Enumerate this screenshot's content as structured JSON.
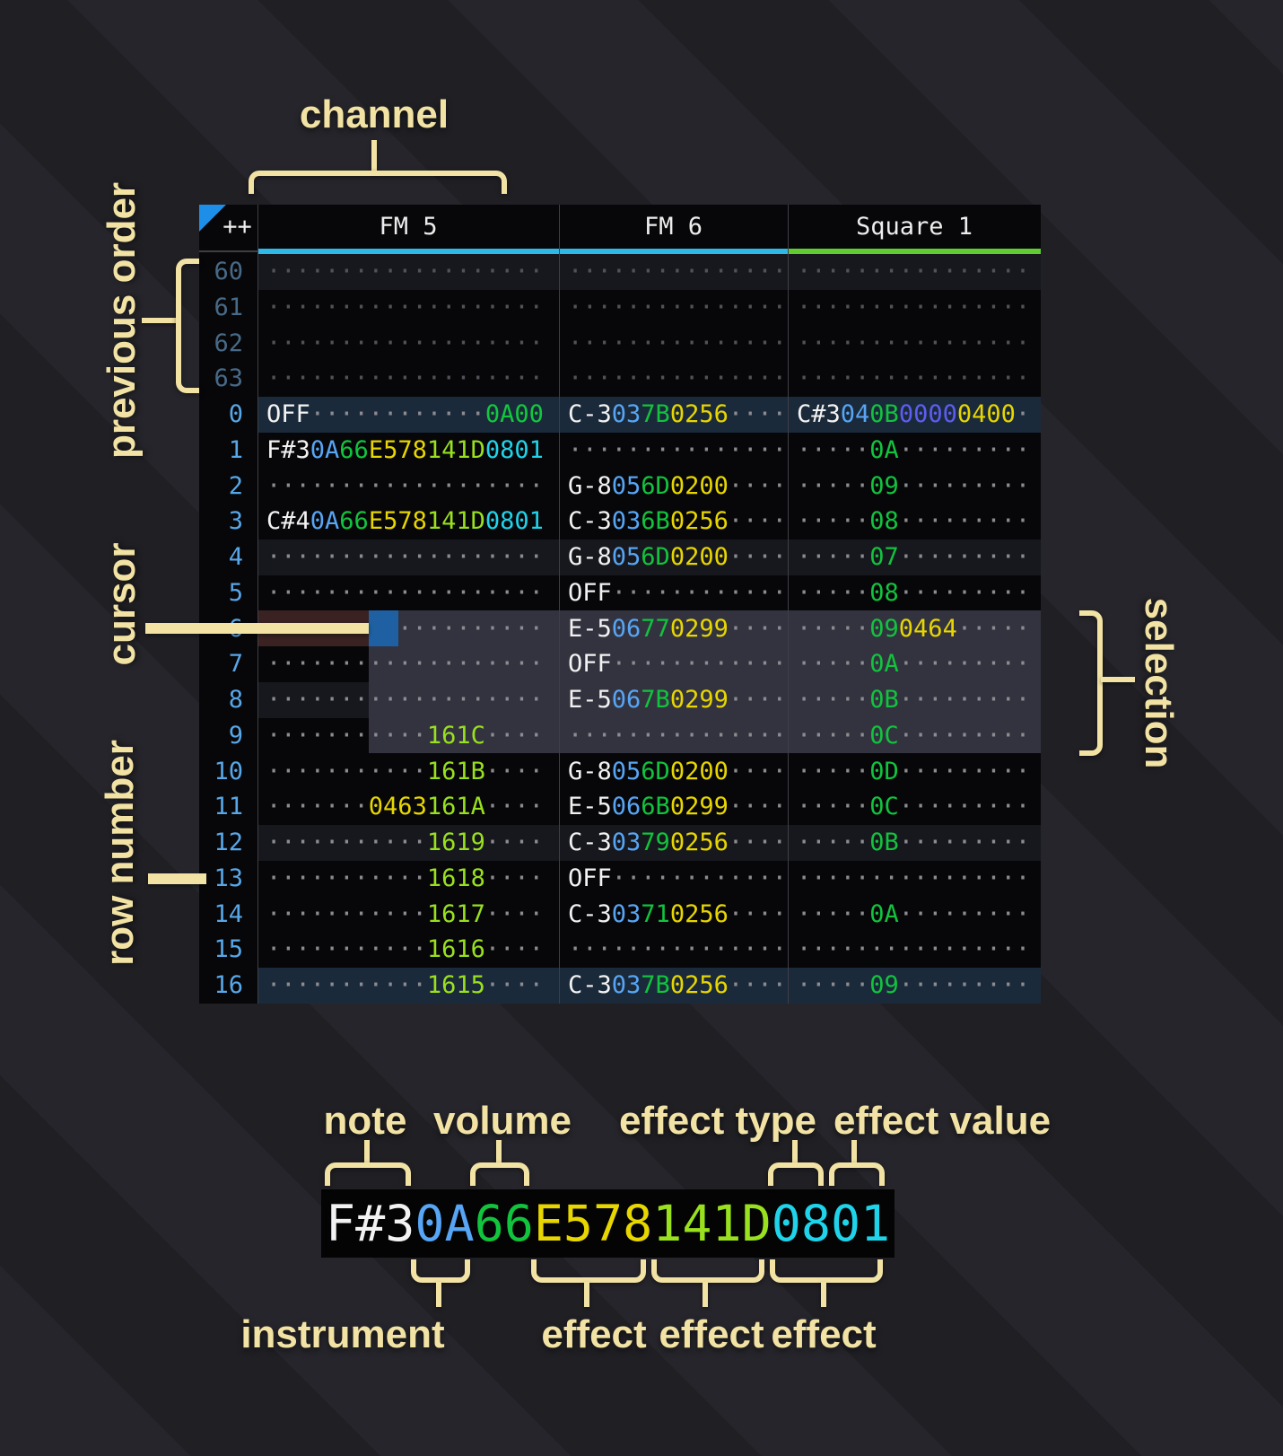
{
  "annotations": {
    "channel": "channel",
    "previous_order": "previous order",
    "cursor": "cursor",
    "row_number": "row number",
    "selection": "selection"
  },
  "header": {
    "order_cell": "++",
    "channels": [
      {
        "name": "FM 5",
        "accent": "#2fb9e9"
      },
      {
        "name": "FM 6",
        "accent": "#2fb9e9"
      },
      {
        "name": "Square 1",
        "accent": "#5fcd31"
      }
    ]
  },
  "colors": {
    "note": "#f2f2f2",
    "instrument": "#57a5f4",
    "volume": "#12c33e",
    "fx_yellow": "#e7d600",
    "fx_lime": "#99e01e",
    "fx_cyan": "#1fd4ea",
    "fx_indigo": "#5d5df2",
    "fx_green": "#12c83e",
    "dots": "#8b8b90",
    "dots_dim": "#515158",
    "row_number": "#58a7e8",
    "prev_row_number": "#476a88",
    "cream": "#f2e3a4",
    "cursor": "#1f60a2",
    "cursor_row": "#3a2222",
    "selection": "#333340",
    "row_major_bg": "#1b2a3a",
    "row_minor_bg": "#17181d"
  },
  "pattern": {
    "rows": [
      {
        "num": "60",
        "prev": true,
        "bg": "minor",
        "cells": [
          [
            [
              "···················",
              "d"
            ]
          ],
          [
            [
              "···············",
              "d"
            ]
          ],
          [
            [
              "················",
              "d"
            ]
          ]
        ]
      },
      {
        "num": "61",
        "prev": true,
        "bg": "none",
        "cells": [
          [
            [
              "···················",
              "d"
            ]
          ],
          [
            [
              "···············",
              "d"
            ]
          ],
          [
            [
              "················",
              "d"
            ]
          ]
        ]
      },
      {
        "num": "62",
        "prev": true,
        "bg": "none",
        "cells": [
          [
            [
              "···················",
              "d"
            ]
          ],
          [
            [
              "···············",
              "d"
            ]
          ],
          [
            [
              "················",
              "d"
            ]
          ]
        ]
      },
      {
        "num": "63",
        "prev": true,
        "bg": "none",
        "cells": [
          [
            [
              "···················",
              "d"
            ]
          ],
          [
            [
              "···············",
              "d"
            ]
          ],
          [
            [
              "················",
              "d"
            ]
          ]
        ]
      },
      {
        "num": "0",
        "prev": false,
        "bg": "major",
        "cells": [
          [
            [
              "OFF",
              "n"
            ],
            [
              "············",
              "d"
            ],
            [
              "0A00",
              "fg"
            ]
          ],
          [
            [
              "C-3",
              "n"
            ],
            [
              "03",
              "i"
            ],
            [
              "7B",
              "v"
            ],
            [
              "0256",
              "fy"
            ],
            [
              "····",
              "d"
            ]
          ],
          [
            [
              "C#3",
              "n"
            ],
            [
              "04",
              "i"
            ],
            [
              "0B",
              "v"
            ],
            [
              "0000",
              "fi"
            ],
            [
              "0400",
              "fy"
            ],
            [
              "·",
              "d"
            ]
          ]
        ]
      },
      {
        "num": "1",
        "prev": false,
        "bg": "none",
        "cells": [
          [
            [
              "F#3",
              "n"
            ],
            [
              "0A",
              "i"
            ],
            [
              "66",
              "v"
            ],
            [
              "E578",
              "fy"
            ],
            [
              "141D",
              "fl"
            ],
            [
              "0801",
              "fc"
            ]
          ],
          [
            [
              "···············",
              "d"
            ]
          ],
          [
            [
              "·····",
              "d"
            ],
            [
              "0A",
              "v"
            ],
            [
              "·········",
              "d"
            ]
          ]
        ]
      },
      {
        "num": "2",
        "prev": false,
        "bg": "none",
        "cells": [
          [
            [
              "···················",
              "d"
            ]
          ],
          [
            [
              "G-8",
              "n"
            ],
            [
              "05",
              "i"
            ],
            [
              "6D",
              "v"
            ],
            [
              "0200",
              "fy"
            ],
            [
              "····",
              "d"
            ]
          ],
          [
            [
              "·····",
              "d"
            ],
            [
              "09",
              "v"
            ],
            [
              "·········",
              "d"
            ]
          ]
        ]
      },
      {
        "num": "3",
        "prev": false,
        "bg": "none",
        "cells": [
          [
            [
              "C#4",
              "n"
            ],
            [
              "0A",
              "i"
            ],
            [
              "66",
              "v"
            ],
            [
              "E578",
              "fy"
            ],
            [
              "141D",
              "fl"
            ],
            [
              "0801",
              "fc"
            ]
          ],
          [
            [
              "C-3",
              "n"
            ],
            [
              "03",
              "i"
            ],
            [
              "6B",
              "v"
            ],
            [
              "0256",
              "fy"
            ],
            [
              "····",
              "d"
            ]
          ],
          [
            [
              "·····",
              "d"
            ],
            [
              "08",
              "v"
            ],
            [
              "·········",
              "d"
            ]
          ]
        ]
      },
      {
        "num": "4",
        "prev": false,
        "bg": "minor",
        "cells": [
          [
            [
              "···················",
              "d"
            ]
          ],
          [
            [
              "G-8",
              "n"
            ],
            [
              "05",
              "i"
            ],
            [
              "6D",
              "v"
            ],
            [
              "0200",
              "fy"
            ],
            [
              "····",
              "d"
            ]
          ],
          [
            [
              "·····",
              "d"
            ],
            [
              "07",
              "v"
            ],
            [
              "·········",
              "d"
            ]
          ]
        ]
      },
      {
        "num": "5",
        "prev": false,
        "bg": "none",
        "cells": [
          [
            [
              "···················",
              "d"
            ]
          ],
          [
            [
              "OFF",
              "n"
            ],
            [
              "············",
              "d"
            ]
          ],
          [
            [
              "·····",
              "d"
            ],
            [
              "08",
              "v"
            ],
            [
              "·········",
              "d"
            ]
          ]
        ]
      },
      {
        "num": "6",
        "prev": false,
        "bg": "none",
        "cells": [
          [
            [
              "···················",
              "d"
            ]
          ],
          [
            [
              "E-5",
              "n"
            ],
            [
              "06",
              "i"
            ],
            [
              "77",
              "v"
            ],
            [
              "0299",
              "fy"
            ],
            [
              "····",
              "d"
            ]
          ],
          [
            [
              "·····",
              "d"
            ],
            [
              "09",
              "v"
            ],
            [
              "0464",
              "fy"
            ],
            [
              "·····",
              "d"
            ]
          ]
        ]
      },
      {
        "num": "7",
        "prev": false,
        "bg": "none",
        "cells": [
          [
            [
              "···················",
              "d"
            ]
          ],
          [
            [
              "OFF",
              "n"
            ],
            [
              "············",
              "d"
            ]
          ],
          [
            [
              "·····",
              "d"
            ],
            [
              "0A",
              "v"
            ],
            [
              "·········",
              "d"
            ]
          ]
        ]
      },
      {
        "num": "8",
        "prev": false,
        "bg": "minor",
        "cells": [
          [
            [
              "···················",
              "d"
            ]
          ],
          [
            [
              "E-5",
              "n"
            ],
            [
              "06",
              "i"
            ],
            [
              "7B",
              "v"
            ],
            [
              "0299",
              "fy"
            ],
            [
              "····",
              "d"
            ]
          ],
          [
            [
              "·····",
              "d"
            ],
            [
              "0B",
              "v"
            ],
            [
              "·········",
              "d"
            ]
          ]
        ]
      },
      {
        "num": "9",
        "prev": false,
        "bg": "none",
        "cells": [
          [
            [
              "···········",
              "d"
            ],
            [
              "161C",
              "fl"
            ],
            [
              "····",
              "d"
            ]
          ],
          [
            [
              "···············",
              "d"
            ]
          ],
          [
            [
              "·····",
              "d"
            ],
            [
              "0C",
              "v"
            ],
            [
              "·········",
              "d"
            ]
          ]
        ]
      },
      {
        "num": "10",
        "prev": false,
        "bg": "none",
        "cells": [
          [
            [
              "···········",
              "d"
            ],
            [
              "161B",
              "fl"
            ],
            [
              "····",
              "d"
            ]
          ],
          [
            [
              "G-8",
              "n"
            ],
            [
              "05",
              "i"
            ],
            [
              "6D",
              "v"
            ],
            [
              "0200",
              "fy"
            ],
            [
              "····",
              "d"
            ]
          ],
          [
            [
              "·····",
              "d"
            ],
            [
              "0D",
              "v"
            ],
            [
              "·········",
              "d"
            ]
          ]
        ]
      },
      {
        "num": "11",
        "prev": false,
        "bg": "none",
        "cells": [
          [
            [
              "·······",
              "d"
            ],
            [
              "0463",
              "fy"
            ],
            [
              "161A",
              "fl"
            ],
            [
              "····",
              "d"
            ]
          ],
          [
            [
              "E-5",
              "n"
            ],
            [
              "06",
              "i"
            ],
            [
              "6B",
              "v"
            ],
            [
              "0299",
              "fy"
            ],
            [
              "····",
              "d"
            ]
          ],
          [
            [
              "·····",
              "d"
            ],
            [
              "0C",
              "v"
            ],
            [
              "·········",
              "d"
            ]
          ]
        ]
      },
      {
        "num": "12",
        "prev": false,
        "bg": "minor",
        "cells": [
          [
            [
              "···········",
              "d"
            ],
            [
              "1619",
              "fl"
            ],
            [
              "····",
              "d"
            ]
          ],
          [
            [
              "C-3",
              "n"
            ],
            [
              "03",
              "i"
            ],
            [
              "79",
              "v"
            ],
            [
              "0256",
              "fy"
            ],
            [
              "····",
              "d"
            ]
          ],
          [
            [
              "·····",
              "d"
            ],
            [
              "0B",
              "v"
            ],
            [
              "·········",
              "d"
            ]
          ]
        ]
      },
      {
        "num": "13",
        "prev": false,
        "bg": "none",
        "cells": [
          [
            [
              "···········",
              "d"
            ],
            [
              "1618",
              "fl"
            ],
            [
              "····",
              "d"
            ]
          ],
          [
            [
              "OFF",
              "n"
            ],
            [
              "············",
              "d"
            ]
          ],
          [
            [
              "················",
              "d"
            ]
          ]
        ]
      },
      {
        "num": "14",
        "prev": false,
        "bg": "none",
        "cells": [
          [
            [
              "···········",
              "d"
            ],
            [
              "1617",
              "fl"
            ],
            [
              "····",
              "d"
            ]
          ],
          [
            [
              "C-3",
              "n"
            ],
            [
              "03",
              "i"
            ],
            [
              "71",
              "v"
            ],
            [
              "0256",
              "fy"
            ],
            [
              "····",
              "d"
            ]
          ],
          [
            [
              "·····",
              "d"
            ],
            [
              "0A",
              "v"
            ],
            [
              "·········",
              "d"
            ]
          ]
        ]
      },
      {
        "num": "15",
        "prev": false,
        "bg": "none",
        "cells": [
          [
            [
              "···········",
              "d"
            ],
            [
              "1616",
              "fl"
            ],
            [
              "····",
              "d"
            ]
          ],
          [
            [
              "···············",
              "d"
            ]
          ],
          [
            [
              "················",
              "d"
            ]
          ]
        ]
      },
      {
        "num": "16",
        "prev": false,
        "bg": "major",
        "cells": [
          [
            [
              "···········",
              "d"
            ],
            [
              "1615",
              "fl"
            ],
            [
              "····",
              "d"
            ]
          ],
          [
            [
              "C-3",
              "n"
            ],
            [
              "03",
              "i"
            ],
            [
              "7B",
              "v"
            ],
            [
              "0256",
              "fy"
            ],
            [
              "····",
              "d"
            ]
          ],
          [
            [
              "·····",
              "d"
            ],
            [
              "09",
              "v"
            ],
            [
              "·········",
              "d"
            ]
          ]
        ]
      }
    ]
  },
  "legend": {
    "top_labels": [
      "note",
      "volume",
      "effect type",
      "effect value"
    ],
    "bottom_labels": [
      "instrument",
      "effect",
      "effect",
      "effect"
    ],
    "segments": [
      [
        "F#3",
        "n"
      ],
      [
        "0A",
        "i"
      ],
      [
        "66",
        "v"
      ],
      [
        "E578",
        "fy"
      ],
      [
        "141D",
        "fl"
      ],
      [
        "0801",
        "fc"
      ]
    ]
  }
}
